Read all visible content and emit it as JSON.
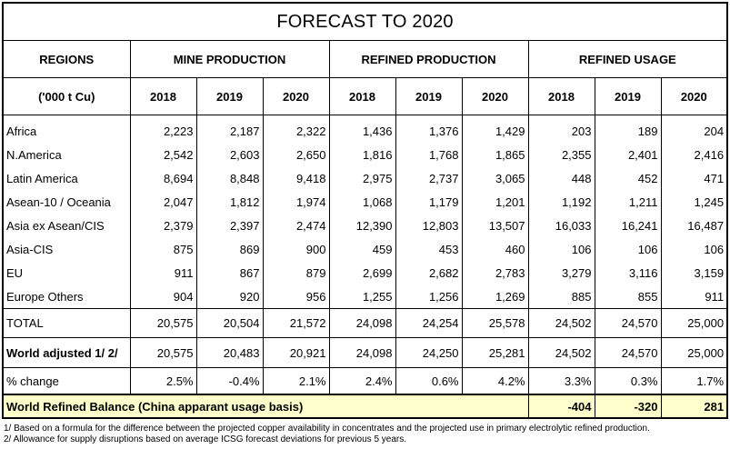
{
  "title": "FORECAST TO 2020",
  "header": {
    "regions_label": "REGIONS",
    "unit_label": "('000 t Cu)",
    "groups": [
      "MINE PRODUCTION",
      "REFINED PRODUCTION",
      "REFINED USAGE"
    ],
    "years": [
      "2018",
      "2019",
      "2020",
      "2018",
      "2019",
      "2020",
      "2018",
      "2019",
      "2020"
    ]
  },
  "rows": [
    {
      "region": "Africa",
      "values": [
        "2,223",
        "2,187",
        "2,322",
        "1,436",
        "1,376",
        "1,429",
        "203",
        "189",
        "204"
      ]
    },
    {
      "region": "N.America",
      "values": [
        "2,542",
        "2,603",
        "2,650",
        "1,816",
        "1,768",
        "1,865",
        "2,355",
        "2,401",
        "2,416"
      ]
    },
    {
      "region": "Latin America",
      "values": [
        "8,694",
        "8,848",
        "9,418",
        "2,975",
        "2,737",
        "3,065",
        "448",
        "452",
        "471"
      ]
    },
    {
      "region": "Asean-10 / Oceania",
      "values": [
        "2,047",
        "1,812",
        "1,974",
        "1,068",
        "1,179",
        "1,201",
        "1,192",
        "1,211",
        "1,245"
      ]
    },
    {
      "region": "Asia ex Asean/CIS",
      "values": [
        "2,379",
        "2,397",
        "2,474",
        "12,390",
        "12,803",
        "13,507",
        "16,033",
        "16,241",
        "16,487"
      ]
    },
    {
      "region": "Asia-CIS",
      "values": [
        "875",
        "869",
        "900",
        "459",
        "453",
        "460",
        "106",
        "106",
        "106"
      ]
    },
    {
      "region": "EU",
      "values": [
        "911",
        "867",
        "879",
        "2,699",
        "2,682",
        "2,783",
        "3,279",
        "3,116",
        "3,159"
      ]
    },
    {
      "region": "Europe Others",
      "values": [
        "904",
        "920",
        "956",
        "1,255",
        "1,256",
        "1,269",
        "885",
        "855",
        "911"
      ]
    }
  ],
  "total": {
    "label": "TOTAL",
    "values": [
      "20,575",
      "20,504",
      "21,572",
      "24,098",
      "24,254",
      "25,578",
      "24,502",
      "24,570",
      "25,000"
    ]
  },
  "world_adjusted": {
    "label": "World adjusted 1/ 2/",
    "values": [
      "20,575",
      "20,483",
      "20,921",
      "24,098",
      "24,250",
      "25,281",
      "24,502",
      "24,570",
      "25,000"
    ]
  },
  "pct_change": {
    "label": "% change",
    "values": [
      "2.5%",
      "-0.4%",
      "2.1%",
      "2.4%",
      "0.6%",
      "4.2%",
      "3.3%",
      "0.3%",
      "1.7%"
    ]
  },
  "balance": {
    "label": "World Refined Balance (China apparant usage basis)",
    "values": [
      "-404",
      "-320",
      "281"
    ]
  },
  "footnotes": [
    "1/ Based on a formula for the difference between the projected copper availability in concentrates and the projected use in primary electrolytic refined production.",
    "2/ Allowance for supply disruptions based on average ICSG forecast deviations for previous 5 years."
  ],
  "colors": {
    "balance_bg": "#ffffcc"
  }
}
